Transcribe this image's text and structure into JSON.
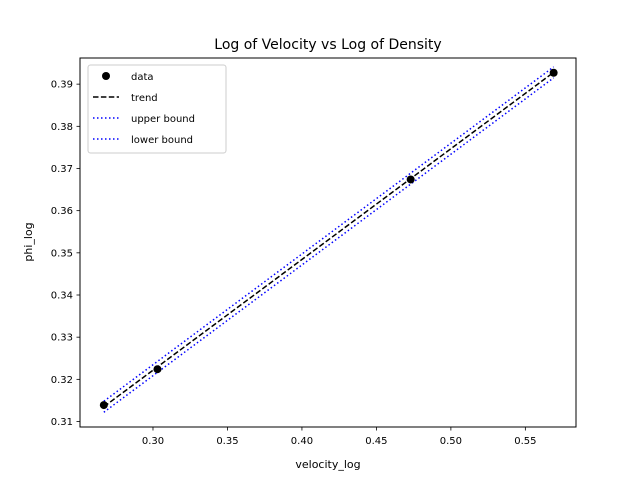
{
  "chart_data": {
    "type": "line",
    "title": "Log of Velocity vs Log of Density",
    "xlabel": "velocity_log",
    "ylabel": "phi_log",
    "xlim": [
      0.251,
      0.584
    ],
    "ylim": [
      0.3087,
      0.3962
    ],
    "xticks": [
      0.3,
      0.35,
      0.4,
      0.45,
      0.5,
      0.55
    ],
    "xtick_labels": [
      "0.30",
      "0.35",
      "0.40",
      "0.45",
      "0.50",
      "0.55"
    ],
    "yticks": [
      0.31,
      0.32,
      0.33,
      0.34,
      0.35,
      0.36,
      0.37,
      0.38,
      0.39
    ],
    "ytick_labels": [
      "0.31",
      "0.32",
      "0.33",
      "0.34",
      "0.35",
      "0.36",
      "0.37",
      "0.38",
      "0.39"
    ],
    "grid": false,
    "legend_position": "upper-left",
    "series": [
      {
        "name": "data",
        "style": "markers",
        "color": "#000000",
        "x": [
          0.267,
          0.303,
          0.473,
          0.569
        ],
        "y": [
          0.3139,
          0.3224,
          0.3674,
          0.3927
        ]
      },
      {
        "name": "trend",
        "style": "dashed",
        "color": "#000000",
        "x": [
          0.267,
          0.569
        ],
        "y": [
          0.3135,
          0.3928
        ]
      },
      {
        "name": "upper bound",
        "style": "dotted",
        "color": "#0000ff",
        "x": [
          0.267,
          0.569
        ],
        "y": [
          0.3148,
          0.3941
        ]
      },
      {
        "name": "lower bound",
        "style": "dotted",
        "color": "#0000ff",
        "x": [
          0.267,
          0.569
        ],
        "y": [
          0.3122,
          0.3915
        ]
      }
    ]
  }
}
